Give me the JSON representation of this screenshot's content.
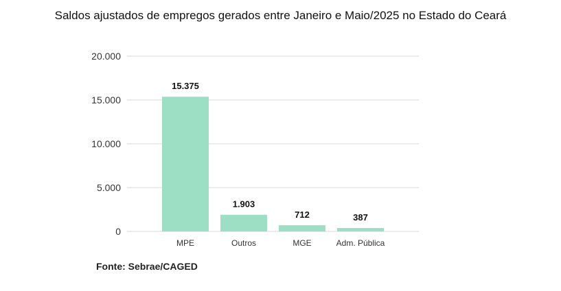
{
  "chart_data": {
    "type": "bar",
    "title": "Saldos ajustados de empregos gerados entre Janeiro e Maio/2025 no Estado do Ceará",
    "categories": [
      "MPE",
      "Outros",
      "MGE",
      "Adm. Pública"
    ],
    "values": [
      15375,
      1903,
      712,
      387
    ],
    "value_labels": [
      "15.375",
      "1.903",
      "712",
      "387"
    ],
    "yticks": [
      0,
      5000,
      10000,
      15000,
      20000
    ],
    "ytick_labels": [
      "0",
      "5.000",
      "10.000",
      "15.000",
      "20.000"
    ],
    "ylim": [
      0,
      20000
    ],
    "grid": true,
    "bar_color": "#9ddfc4"
  },
  "source": "Fonte: Sebrae/CAGED"
}
